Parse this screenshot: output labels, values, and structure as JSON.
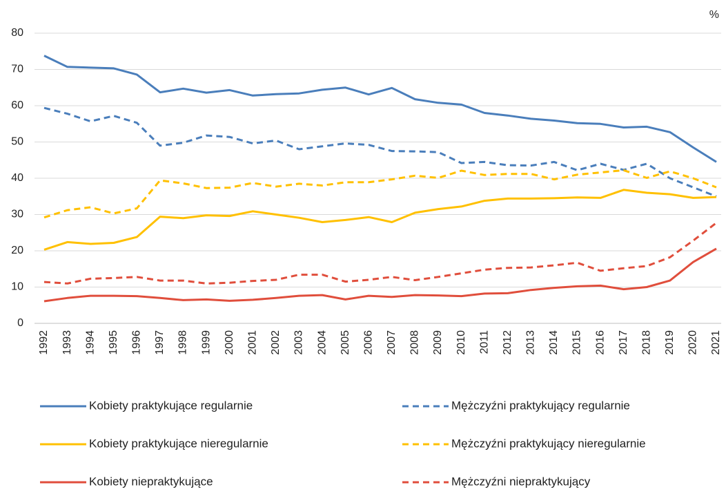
{
  "chart_data": {
    "type": "line",
    "ylabel": "%",
    "categories": [
      "1992",
      "1993",
      "1994",
      "1995",
      "1996",
      "1997",
      "1998",
      "1999",
      "2000",
      "2001",
      "2002",
      "2003",
      "2004",
      "2005",
      "2006",
      "2007",
      "2008",
      "2009",
      "2010",
      "2011",
      "2012",
      "2013",
      "2014",
      "2015",
      "2016",
      "2017",
      "2018",
      "2019",
      "2020",
      "2021"
    ],
    "series": [
      {
        "name": "Kobiety praktykujące regularnie",
        "color": "#4a7ebb",
        "dashed": false,
        "values": [
          73.8,
          70.7,
          70.5,
          70.3,
          68.6,
          63.7,
          64.7,
          63.6,
          64.3,
          62.8,
          63.2,
          63.4,
          64.4,
          65.0,
          63.1,
          64.9,
          61.8,
          60.8,
          60.3,
          58.0,
          57.3,
          56.4,
          55.9,
          55.2,
          55.0,
          54.0,
          54.2,
          52.7,
          48.5,
          44.5
        ]
      },
      {
        "name": "Mężczyźni praktykujący regularnie",
        "color": "#4a7ebb",
        "dashed": true,
        "values": [
          59.4,
          57.8,
          55.7,
          57.2,
          55.3,
          49.0,
          49.8,
          51.8,
          51.4,
          49.6,
          50.4,
          48.0,
          48.8,
          49.6,
          49.2,
          47.5,
          47.4,
          47.2,
          44.2,
          44.5,
          43.6,
          43.5,
          44.5,
          42.2,
          44.0,
          42.3,
          44.0,
          40.0,
          37.5,
          35.0
        ]
      },
      {
        "name": "Kobiety praktykujące nieregularnie",
        "color": "#ffc000",
        "dashed": false,
        "values": [
          20.3,
          22.4,
          21.9,
          22.2,
          23.8,
          29.4,
          29.0,
          29.8,
          29.6,
          30.9,
          30.0,
          29.1,
          27.9,
          28.5,
          29.3,
          27.9,
          30.5,
          31.5,
          32.2,
          33.8,
          34.4,
          34.4,
          34.5,
          34.7,
          34.6,
          36.8,
          36.0,
          35.6,
          34.6,
          34.8
        ]
      },
      {
        "name": "Mężczyźni praktykujący nieregularnie",
        "color": "#ffc000",
        "dashed": true,
        "values": [
          29.2,
          31.2,
          32.0,
          30.3,
          31.7,
          39.4,
          38.6,
          37.3,
          37.4,
          38.7,
          37.7,
          38.5,
          38.0,
          38.9,
          38.9,
          39.7,
          40.7,
          40.1,
          42.1,
          40.9,
          41.2,
          41.2,
          39.7,
          41.0,
          41.6,
          42.2,
          40.1,
          41.9,
          40.0,
          37.5
        ]
      },
      {
        "name": "Kobiety niepraktykujące",
        "color": "#e04e3c",
        "dashed": false,
        "values": [
          6.1,
          7.0,
          7.6,
          7.6,
          7.5,
          7.0,
          6.4,
          6.6,
          6.2,
          6.5,
          7.0,
          7.6,
          7.8,
          6.6,
          7.6,
          7.3,
          7.8,
          7.7,
          7.5,
          8.2,
          8.3,
          9.2,
          9.8,
          10.2,
          10.4,
          9.4,
          10.0,
          11.8,
          16.9,
          20.6
        ]
      },
      {
        "name": "Mężczyźni niepraktykujący",
        "color": "#e04e3c",
        "dashed": true,
        "values": [
          11.4,
          11.0,
          12.3,
          12.5,
          12.8,
          11.8,
          11.8,
          11.0,
          11.2,
          11.7,
          12.0,
          13.4,
          13.4,
          11.5,
          12.0,
          12.8,
          11.9,
          12.8,
          13.8,
          14.8,
          15.3,
          15.4,
          16.0,
          16.7,
          14.5,
          15.2,
          15.8,
          18.2,
          22.8,
          27.7
        ]
      }
    ],
    "ylim": [
      0,
      80
    ],
    "yticks": [
      0,
      10,
      20,
      30,
      40,
      50,
      60,
      70,
      80
    ],
    "grid": true
  }
}
